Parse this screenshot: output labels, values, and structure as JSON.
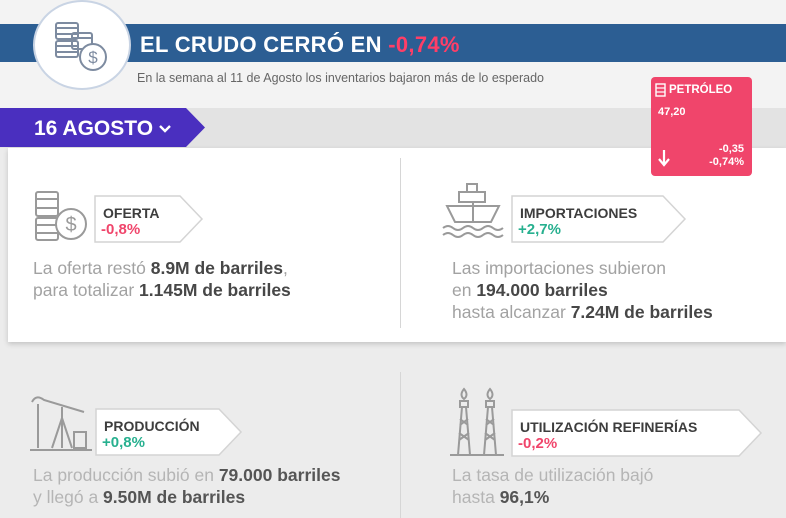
{
  "header": {
    "title_text": "EL CRUDO CERRÓ EN ",
    "title_change": "-0,74%",
    "subtitle": "En la semana al 11 de Agosto los inventarios bajaron más de lo esperado",
    "logo_icon": "barrels-dollar-icon"
  },
  "date_tab": {
    "label": "16 AGOSTO",
    "icon": "chevron-down-icon"
  },
  "ticker": {
    "name": "PETRÓLEO",
    "price": "47,20",
    "change_abs": "-0,35",
    "change_pct": "-0,74%",
    "bg_color": "#f0456b"
  },
  "cards": [
    {
      "icon": "barrels-dollar-icon",
      "label": "OFERTA",
      "value": "-0,8%",
      "trend": "negative",
      "desc": [
        [
          "La oferta restó ",
          "8.9M de barriles",
          ","
        ],
        [
          "para totalizar ",
          "1.145M de barriles",
          ""
        ]
      ]
    },
    {
      "icon": "ship-icon",
      "label": "IMPORTACIONES",
      "value": "+2,7%",
      "trend": "positive",
      "desc": [
        [
          "Las importaciones subieron",
          "",
          ""
        ],
        [
          "en ",
          "194.000 barriles",
          ""
        ],
        [
          "hasta alcanzar ",
          "7.24M de barriles",
          ""
        ]
      ]
    },
    {
      "icon": "oil-pump-icon",
      "label": "PRODUCCIÓN",
      "value": "+0,8%",
      "trend": "positive",
      "desc": [
        [
          "La producción subió en ",
          "79.000 barriles",
          ""
        ],
        [
          "y llegó a ",
          "9.50M de barriles",
          ""
        ]
      ]
    },
    {
      "icon": "refinery-towers-icon",
      "label": "UTILIZACIÓN REFINERÍAS",
      "value": "-0,2%",
      "trend": "negative",
      "desc": [
        [
          "La tasa de utilización bajó",
          "",
          ""
        ],
        [
          "hasta ",
          "96,1%",
          ""
        ]
      ]
    }
  ],
  "colors": {
    "title_bar": "#2c5e93",
    "date_tab": "#4a2fbf",
    "negative": "#f0456b",
    "positive": "#27b08f"
  }
}
